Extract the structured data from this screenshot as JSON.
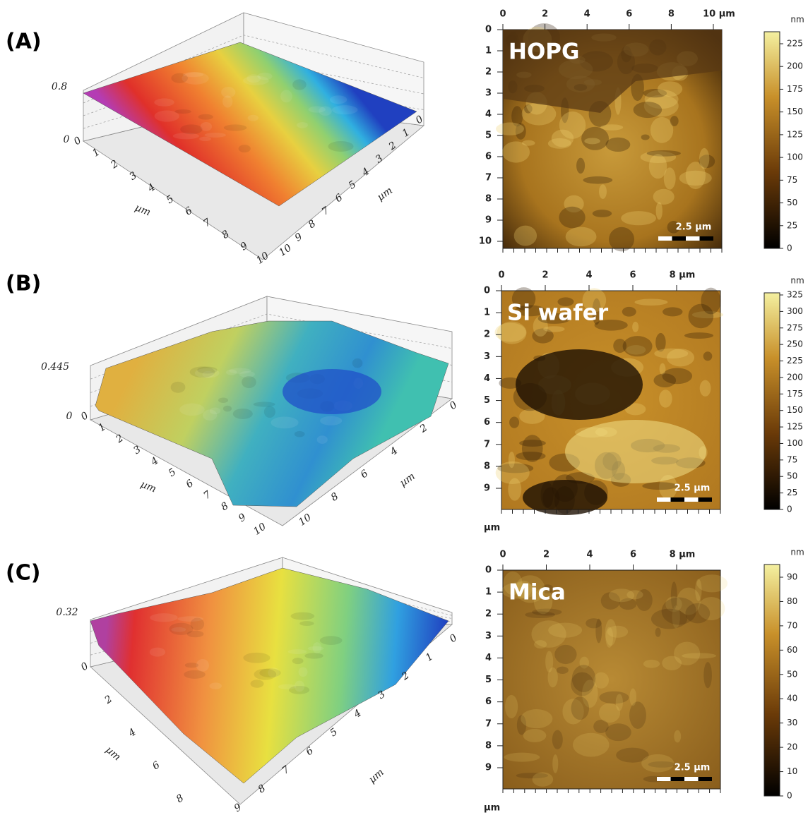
{
  "panels": [
    {
      "label": "(A)",
      "surface": {
        "z_top": "0.8",
        "z_bottom": "0",
        "axis1_ticks": [
          "0",
          "1",
          "2",
          "3",
          "4",
          "5",
          "6",
          "7",
          "8",
          "9",
          "10"
        ],
        "axis1_unit": "µm",
        "axis2_ticks": [
          "0",
          "1",
          "2",
          "3",
          "4",
          "5",
          "6",
          "7",
          "8",
          "9",
          "10"
        ],
        "axis2_unit": "µm"
      },
      "image": {
        "sample": "HOPG",
        "top_ticks": [
          "0",
          "2",
          "4",
          "6",
          "8",
          "10 µm"
        ],
        "left_ticks": [
          "0",
          "1",
          "2",
          "3",
          "4",
          "5",
          "6",
          "7",
          "8",
          "9",
          "10"
        ],
        "scale_bar": "2.5 µm",
        "colorbar": {
          "unit": "nm",
          "ticks": [
            0,
            25,
            50,
            75,
            100,
            125,
            150,
            175,
            200,
            225
          ]
        }
      }
    },
    {
      "label": "(B)",
      "surface": {
        "z_top": "0.445",
        "z_bottom": "0",
        "axis1_ticks": [
          "0",
          "1",
          "2",
          "3",
          "4",
          "5",
          "6",
          "7",
          "8",
          "9",
          "10"
        ],
        "axis1_unit": "µm",
        "axis2_ticks": [
          "0",
          "2",
          "4",
          "6",
          "8",
          "10"
        ],
        "axis2_unit": "µm"
      },
      "image": {
        "sample": "Si wafer",
        "top_ticks": [
          "0",
          "2",
          "4",
          "6",
          "8 µm"
        ],
        "left_ticks": [
          "0",
          "1",
          "2",
          "3",
          "4",
          "5",
          "6",
          "7",
          "8",
          "9"
        ],
        "bottom_unit": "µm",
        "scale_bar": "2.5 µm",
        "colorbar": {
          "unit": "nm",
          "ticks": [
            0,
            25,
            50,
            75,
            100,
            125,
            150,
            175,
            200,
            225,
            250,
            275,
            300,
            325
          ]
        }
      }
    },
    {
      "label": "(C)",
      "surface": {
        "z_top": "0.32",
        "axis1_ticks": [
          "0",
          "2",
          "4",
          "6",
          "8"
        ],
        "axis1_unit": "µm",
        "axis2_ticks": [
          "0",
          "1",
          "2",
          "3",
          "4",
          "5",
          "6",
          "7",
          "8",
          "9"
        ],
        "axis2_unit": "µm"
      },
      "image": {
        "sample": "Mica",
        "top_ticks": [
          "0",
          "2",
          "4",
          "6",
          "8 µm"
        ],
        "left_ticks": [
          "0",
          "1",
          "2",
          "3",
          "4",
          "5",
          "6",
          "7",
          "8",
          "9"
        ],
        "bottom_unit": "µm",
        "scale_bar": "2.5 µm",
        "colorbar": {
          "unit": "nm",
          "ticks": [
            0,
            10,
            20,
            30,
            40,
            50,
            60,
            70,
            80,
            90
          ]
        }
      }
    }
  ]
}
